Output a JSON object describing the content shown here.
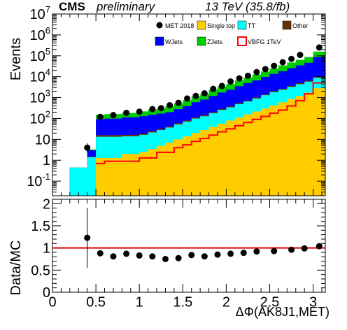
{
  "header": {
    "experiment": "CMS",
    "status": "preliminary",
    "lumi": "13 TeV (35.8/fb)"
  },
  "chart_data": [
    {
      "type": "bar",
      "stacked": true,
      "log_y": true,
      "ylabel": "Events",
      "xlim": [
        0,
        3.14
      ],
      "ylim": [
        0.02,
        10000000
      ],
      "y_ticks": [
        {
          "v": 0.1,
          "base": "10",
          "exp": "-1"
        },
        {
          "v": 1,
          "base": "1",
          "exp": ""
        },
        {
          "v": 10,
          "base": "10",
          "exp": ""
        },
        {
          "v": 100,
          "base": "10",
          "exp": "2"
        },
        {
          "v": 1000,
          "base": "10",
          "exp": "3"
        },
        {
          "v": 10000,
          "base": "10",
          "exp": "4"
        },
        {
          "v": 100000,
          "base": "10",
          "exp": "5"
        },
        {
          "v": 1000000,
          "base": "10",
          "exp": "6"
        },
        {
          "v": 10000000,
          "base": "10",
          "exp": "7"
        }
      ],
      "bin_edges": [
        0.0,
        0.2,
        0.4,
        0.5,
        0.6,
        0.8,
        1.0,
        1.1,
        1.2,
        1.3,
        1.4,
        1.5,
        1.6,
        1.7,
        1.8,
        1.9,
        2.0,
        2.1,
        2.2,
        2.3,
        2.4,
        2.5,
        2.6,
        2.7,
        2.8,
        2.9,
        3.0,
        3.14
      ],
      "stack_order": [
        "Single top",
        "TT",
        "Other",
        "WJets",
        "ZJets"
      ],
      "stack": [
        {
          "name": "Single top",
          "color": "#ffcc00",
          "values": [
            0,
            0,
            0,
            1.3,
            1.3,
            2,
            2.5,
            3.5,
            5,
            7,
            10,
            14,
            20,
            28,
            40,
            56,
            80,
            110,
            155,
            215,
            300,
            420,
            600,
            850,
            1200,
            1700,
            2800
          ]
        },
        {
          "name": "TT",
          "color": "#00ffff",
          "values": [
            0,
            0.45,
            1.4,
            12,
            12,
            12,
            14,
            18,
            23,
            30,
            42,
            57,
            80,
            100,
            140,
            200,
            260,
            380,
            500,
            700,
            1000,
            1400,
            1800,
            2400,
            3200,
            4100,
            6100
          ]
        },
        {
          "name": "Other",
          "color": "#663300",
          "values": [
            0,
            0,
            0.1,
            2.5,
            2.5,
            2.5,
            2.5,
            3.5,
            4,
            5,
            7,
            9,
            12,
            15,
            21,
            28,
            35,
            52,
            65,
            95,
            130,
            200,
            250,
            350,
            500,
            650,
            900
          ]
        },
        {
          "name": "WJets",
          "color": "#0000ff",
          "values": [
            0,
            0,
            1.5,
            76,
            83,
            96,
            110,
            125,
            140,
            160,
            220,
            310,
            490,
            660,
            1010,
            1450,
            1990,
            2960,
            4250,
            5600,
            8270,
            11600,
            15600,
            22000,
            30000,
            40000,
            77000
          ]
        },
        {
          "name": "ZJets",
          "color": "#00cc00",
          "values": [
            0,
            0,
            0.3,
            54,
            64,
            70,
            88,
            120,
            130,
            190,
            250,
            360,
            520,
            700,
            1200,
            1700,
            2100,
            3200,
            4200,
            6000,
            8000,
            11000,
            16000,
            22000,
            29000,
            40000,
            72000
          ]
        }
      ],
      "signal": {
        "name": "VBFG 1TeV",
        "color": "#ff0000",
        "values": [
          0,
          0,
          0,
          0.7,
          0.9,
          0.9,
          1.3,
          1.3,
          2.4,
          2.4,
          4,
          5.5,
          8,
          11,
          16,
          23,
          32,
          45,
          64,
          90,
          125,
          180,
          250,
          400,
          700,
          1500,
          5000
        ]
      },
      "data": {
        "name": "MET 2018",
        "color": "#000000",
        "points": [
          {
            "x": 0.4,
            "y": 4,
            "ylo": 2.5,
            "yhi": 6.5
          },
          {
            "x": 0.55,
            "y": 120
          },
          {
            "x": 0.7,
            "y": 145
          },
          {
            "x": 0.85,
            "y": 185
          },
          {
            "x": 1.0,
            "y": 210
          },
          {
            "x": 1.15,
            "y": 280
          },
          {
            "x": 1.25,
            "y": 310
          },
          {
            "x": 1.35,
            "y": 430
          },
          {
            "x": 1.45,
            "y": 560
          },
          {
            "x": 1.55,
            "y": 900
          },
          {
            "x": 1.65,
            "y": 1200
          },
          {
            "x": 1.75,
            "y": 1600
          },
          {
            "x": 1.85,
            "y": 2600
          },
          {
            "x": 1.95,
            "y": 3600
          },
          {
            "x": 2.05,
            "y": 5900
          },
          {
            "x": 2.15,
            "y": 8300
          },
          {
            "x": 2.25,
            "y": 11000
          },
          {
            "x": 2.35,
            "y": 16500
          },
          {
            "x": 2.45,
            "y": 23000
          },
          {
            "x": 2.55,
            "y": 33000
          },
          {
            "x": 2.65,
            "y": 49000
          },
          {
            "x": 2.75,
            "y": 71000
          },
          {
            "x": 2.85,
            "y": 110000
          },
          {
            "x": 3.07,
            "y": 250000
          }
        ]
      },
      "legend": {
        "placement": "top-right",
        "entries": [
          {
            "name": "MET 2018",
            "kind": "marker"
          },
          {
            "name": "Single top",
            "kind": "fill"
          },
          {
            "name": "TT",
            "kind": "fill"
          },
          {
            "name": "Other",
            "kind": "fill"
          },
          {
            "name": "WJets",
            "kind": "fill"
          },
          {
            "name": "ZJets",
            "kind": "fill"
          },
          {
            "name": "VBFG 1TeV",
            "kind": "line"
          }
        ]
      }
    },
    {
      "type": "scatter",
      "ylabel": "Data/MC",
      "xlabel": "ΔΦ(AK8J1,MET)",
      "xlim": [
        0,
        3.14
      ],
      "ylim": [
        0,
        2.1
      ],
      "x_ticks": [
        "0",
        "0.5",
        "1",
        "1.5",
        "2",
        "2.5",
        "3"
      ],
      "y_ticks": [
        "0",
        "0.5",
        "1",
        "1.5",
        "2"
      ],
      "reference_line": 1,
      "reference_color": "#dd0000",
      "points": [
        {
          "x": 0.4,
          "y": 1.23,
          "ylo": 0.55,
          "yhi": 1.9
        },
        {
          "x": 0.55,
          "y": 0.88
        },
        {
          "x": 0.7,
          "y": 0.81
        },
        {
          "x": 0.85,
          "y": 0.87
        },
        {
          "x": 1.0,
          "y": 0.83
        },
        {
          "x": 1.15,
          "y": 0.81
        },
        {
          "x": 1.3,
          "y": 0.75
        },
        {
          "x": 1.45,
          "y": 0.77
        },
        {
          "x": 1.6,
          "y": 0.84
        },
        {
          "x": 1.75,
          "y": 0.81
        },
        {
          "x": 1.9,
          "y": 0.85
        },
        {
          "x": 2.05,
          "y": 0.87
        },
        {
          "x": 2.2,
          "y": 0.89
        },
        {
          "x": 2.35,
          "y": 0.92
        },
        {
          "x": 2.55,
          "y": 0.93
        },
        {
          "x": 2.75,
          "y": 0.96
        },
        {
          "x": 2.9,
          "y": 0.99
        },
        {
          "x": 3.07,
          "y": 1.04
        }
      ]
    }
  ]
}
